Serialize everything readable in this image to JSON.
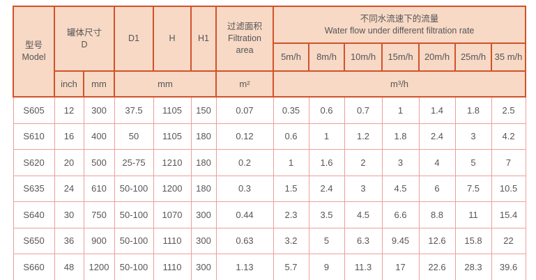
{
  "table": {
    "header": {
      "model": "型号\nModel",
      "tank_size": "罐体尺寸\nD",
      "d1": "D1",
      "h": "H",
      "h1": "H1",
      "filtration_area": "过滤面积\nFiltration\narea",
      "water_flow": "不同水流速下的流量\nWater flow under different filtration rate",
      "rates": [
        "5m/h",
        "8m/h",
        "10m/h",
        "15m/h",
        "20m/h",
        "25m/h",
        "35 m/h"
      ],
      "unit_inch": "inch",
      "unit_mm": "mm",
      "unit_mm_group": "mm",
      "unit_m2": "m²",
      "unit_m3h": "m³/h"
    },
    "rows": [
      {
        "model": "S605",
        "inch": "12",
        "mm": "300",
        "d1": "37.5",
        "h": "1105",
        "h1": "150",
        "area": "0.07",
        "flow": [
          "0.35",
          "0.6",
          "0.7",
          "1",
          "1.4",
          "1.8",
          "2.5"
        ]
      },
      {
        "model": "S610",
        "inch": "16",
        "mm": "400",
        "d1": "50",
        "h": "1105",
        "h1": "180",
        "area": "0.12",
        "flow": [
          "0.6",
          "1",
          "1.2",
          "1.8",
          "2.4",
          "3",
          "4.2"
        ]
      },
      {
        "model": "S620",
        "inch": "20",
        "mm": "500",
        "d1": "25-75",
        "h": "1210",
        "h1": "180",
        "area": "0.2",
        "flow": [
          "1",
          "1.6",
          "2",
          "3",
          "4",
          "5",
          "7"
        ]
      },
      {
        "model": "S635",
        "inch": "24",
        "mm": "610",
        "d1": "50-100",
        "h": "1200",
        "h1": "180",
        "area": "0.3",
        "flow": [
          "1.5",
          "2.4",
          "3",
          "4.5",
          "6",
          "7.5",
          "10.5"
        ]
      },
      {
        "model": "S640",
        "inch": "30",
        "mm": "750",
        "d1": "50-100",
        "h": "1070",
        "h1": "300",
        "area": "0.44",
        "flow": [
          "2.3",
          "3.5",
          "4.5",
          "6.6",
          "8.8",
          "11",
          "15.4"
        ]
      },
      {
        "model": "S650",
        "inch": "36",
        "mm": "900",
        "d1": "50-100",
        "h": "1110",
        "h1": "300",
        "area": "0.63",
        "flow": [
          "3.2",
          "5",
          "6.3",
          "9.45",
          "12.6",
          "15.8",
          "22"
        ]
      },
      {
        "model": "S660",
        "inch": "48",
        "mm": "1200",
        "d1": "50-100",
        "h": "1110",
        "h1": "300",
        "area": "1.13",
        "flow": [
          "5.7",
          "9",
          "11.3",
          "17",
          "22.6",
          "28.3",
          "39.6"
        ]
      }
    ],
    "colors": {
      "header_bg": "#f7d9c5",
      "header_border": "#d1522a",
      "data_border": "#ee9f99",
      "text": "#565658"
    }
  }
}
